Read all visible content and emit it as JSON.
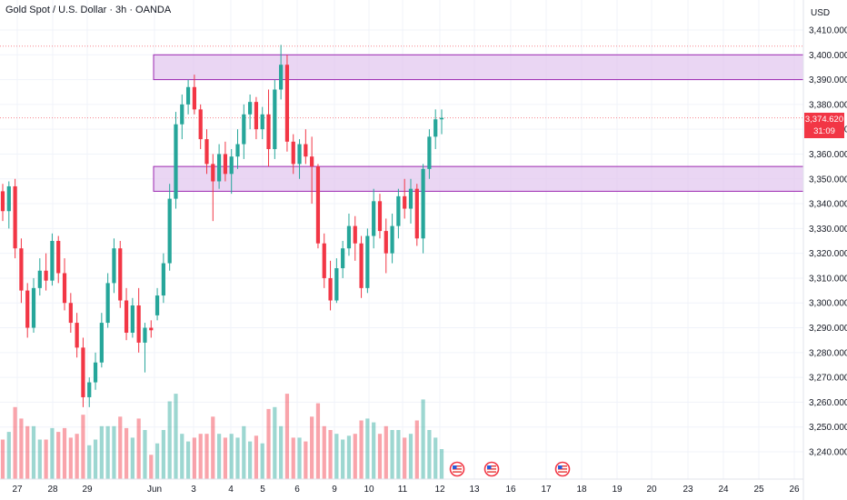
{
  "header": {
    "title": "Gold Spot / U.S. Dollar · 3h · OANDA"
  },
  "axis": {
    "currency": "USD"
  },
  "last_price": {
    "value": "3,374.620",
    "countdown": "31:09"
  },
  "colors": {
    "up": "#26a69a",
    "down": "#f23645",
    "zone_fill": "#e3c8ef",
    "zone_border": "#9c27b0"
  },
  "event_icon": "us-flag-icon",
  "chart_data": {
    "type": "candlestick",
    "title": "Gold Spot / U.S. Dollar · 3h · OANDA",
    "ylim": [
      3235,
      3415
    ],
    "y_ticks": [
      "3,240.000",
      "3,250.000",
      "3,260.000",
      "3,270.000",
      "3,280.000",
      "3,290.000",
      "3,300.000",
      "3,310.000",
      "3,320.000",
      "3,330.000",
      "3,340.000",
      "3,350.000",
      "3,360.000",
      "3,370.000",
      "3,380.000",
      "3,390.000",
      "3,400.000",
      "3,410.000"
    ],
    "x_ticks": [
      "27",
      "28",
      "29",
      "Jun",
      "3",
      "4",
      "5",
      "6",
      "9",
      "10",
      "11",
      "12",
      "13",
      "16",
      "17",
      "18",
      "19",
      "20",
      "23",
      "24",
      "25",
      "26"
    ],
    "zones": [
      {
        "low": 3390,
        "high": 3400
      },
      {
        "low": 3345,
        "high": 3355
      }
    ],
    "reference_lines": [
      3403.5,
      3374.6
    ],
    "series": [
      [
        3345,
        3348,
        3333,
        3337
      ],
      [
        3337,
        3349,
        3330,
        3347
      ],
      [
        3347,
        3350,
        3318,
        3322
      ],
      [
        3322,
        3326,
        3300,
        3305
      ],
      [
        3305,
        3308,
        3286,
        3290
      ],
      [
        3290,
        3310,
        3288,
        3306
      ],
      [
        3306,
        3318,
        3303,
        3313
      ],
      [
        3313,
        3320,
        3305,
        3309
      ],
      [
        3309,
        3328,
        3307,
        3325
      ],
      [
        3325,
        3327,
        3308,
        3312
      ],
      [
        3312,
        3318,
        3297,
        3300
      ],
      [
        3300,
        3304,
        3288,
        3292
      ],
      [
        3292,
        3296,
        3278,
        3282
      ],
      [
        3282,
        3286,
        3258,
        3262
      ],
      [
        3262,
        3270,
        3258,
        3268
      ],
      [
        3268,
        3280,
        3265,
        3276
      ],
      [
        3276,
        3296,
        3274,
        3292
      ],
      [
        3292,
        3312,
        3290,
        3308
      ],
      [
        3308,
        3326,
        3304,
        3322
      ],
      [
        3322,
        3325,
        3298,
        3301
      ],
      [
        3301,
        3306,
        3285,
        3288
      ],
      [
        3288,
        3302,
        3286,
        3299
      ],
      [
        3299,
        3306,
        3280,
        3284
      ],
      [
        3284,
        3292,
        3272,
        3290
      ],
      [
        3290,
        3293,
        3286,
        3289
      ],
      [
        3295,
        3306,
        3293,
        3303
      ],
      [
        3303,
        3320,
        3300,
        3316
      ],
      [
        3316,
        3348,
        3313,
        3342
      ],
      [
        3342,
        3377,
        3338,
        3372
      ],
      [
        3372,
        3384,
        3366,
        3380
      ],
      [
        3380,
        3390,
        3376,
        3387
      ],
      [
        3387,
        3392,
        3376,
        3378
      ],
      [
        3378,
        3380,
        3362,
        3366
      ],
      [
        3366,
        3370,
        3352,
        3356
      ],
      [
        3356,
        3360,
        3333,
        3349
      ],
      [
        3349,
        3364,
        3346,
        3360
      ],
      [
        3360,
        3365,
        3349,
        3352
      ],
      [
        3352,
        3362,
        3344,
        3359
      ],
      [
        3359,
        3370,
        3354,
        3364
      ],
      [
        3364,
        3380,
        3358,
        3376
      ],
      [
        3376,
        3384,
        3370,
        3381
      ],
      [
        3381,
        3383,
        3366,
        3370
      ],
      [
        3370,
        3379,
        3366,
        3376
      ],
      [
        3376,
        3386,
        3355,
        3362
      ],
      [
        3362,
        3390,
        3358,
        3386
      ],
      [
        3386,
        3404,
        3382,
        3396
      ],
      [
        3396,
        3400,
        3361,
        3365
      ],
      [
        3365,
        3368,
        3352,
        3356
      ],
      [
        3356,
        3366,
        3350,
        3364
      ],
      [
        3364,
        3370,
        3356,
        3359
      ],
      [
        3359,
        3367,
        3340,
        3355
      ],
      [
        3355,
        3356,
        3322,
        3324
      ],
      [
        3324,
        3328,
        3306,
        3310
      ],
      [
        3310,
        3317,
        3297,
        3301
      ],
      [
        3301,
        3318,
        3300,
        3314
      ],
      [
        3314,
        3325,
        3310,
        3322
      ],
      [
        3322,
        3336,
        3319,
        3331
      ],
      [
        3331,
        3335,
        3317,
        3324
      ],
      [
        3324,
        3327,
        3302,
        3306
      ],
      [
        3306,
        3330,
        3304,
        3327
      ],
      [
        3327,
        3346,
        3322,
        3341
      ],
      [
        3341,
        3344,
        3326,
        3329
      ],
      [
        3329,
        3334,
        3312,
        3320
      ],
      [
        3320,
        3336,
        3316,
        3331
      ],
      [
        3331,
        3346,
        3326,
        3343
      ],
      [
        3343,
        3350,
        3334,
        3338
      ],
      [
        3338,
        3350,
        3332,
        3346
      ],
      [
        3346,
        3348,
        3323,
        3326
      ],
      [
        3326,
        3356,
        3320,
        3354
      ],
      [
        3354,
        3370,
        3350,
        3367
      ],
      [
        3367,
        3378,
        3362,
        3374
      ],
      [
        3374,
        3378,
        3368,
        3374.6
      ]
    ]
  }
}
